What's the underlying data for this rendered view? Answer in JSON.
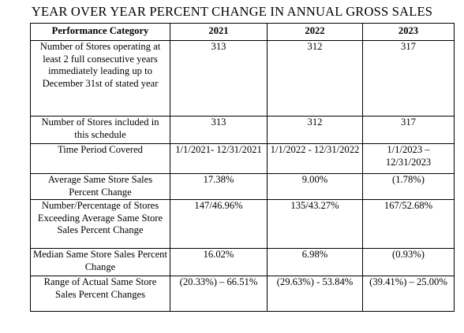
{
  "title": "YEAR OVER YEAR PERCENT CHANGE IN ANNUAL GROSS SALES",
  "table": {
    "headers": [
      "Performance Category",
      "2021",
      "2022",
      "2023"
    ],
    "rows": [
      {
        "category": "Number of Stores operating at least 2 full consecutive years immediately leading up to December 31st of stated year",
        "values": [
          "313",
          "312",
          "317"
        ]
      },
      {
        "category": "Number of Stores included in this schedule",
        "values": [
          "313",
          "312",
          "317"
        ]
      },
      {
        "category": "Time Period Covered",
        "values": [
          "1/1/2021- 12/31/2021",
          "1/1/2022 - 12/31/2022",
          "1/1/2023 – 12/31/2023"
        ]
      },
      {
        "category": "Average Same Store Sales Percent Change",
        "values": [
          "17.38%",
          "9.00%",
          "(1.78%)"
        ]
      },
      {
        "category": "Number/Percentage of Stores Exceeding Average Same Store Sales Percent Change",
        "values": [
          "147/46.96%",
          "135/43.27%",
          "167/52.68%"
        ]
      },
      {
        "category": "Median Same Store Sales Percent Change",
        "values": [
          "16.02%",
          "6.98%",
          "(0.93%)"
        ]
      },
      {
        "category": "Range of Actual Same Store Sales Percent Changes",
        "values": [
          "(20.33%) – 66.51%",
          "(29.63%) - 53.84%",
          "(39.41%) – 25.00%"
        ]
      }
    ]
  }
}
